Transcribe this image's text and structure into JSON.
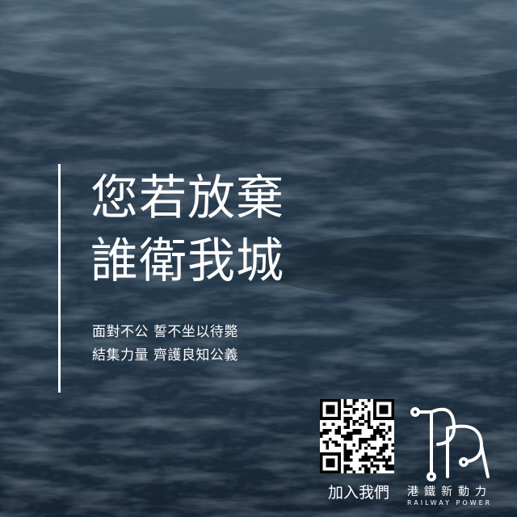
{
  "headline": {
    "line1": "您若放棄",
    "line2": "誰衛我城"
  },
  "subtitle": {
    "line1": "面對不公 誓不坐以待斃",
    "line2": "結集力量 齊護良知公義"
  },
  "cta": {
    "join_label": "加入我們"
  },
  "brand": {
    "name_zh": "港鐵新動力",
    "name_en": "RAILWAY POWER"
  },
  "colors": {
    "text": "#ffffff",
    "water_dark": "#111c27",
    "water_mid": "#2f4558",
    "water_light": "#6f8797"
  },
  "icons": {
    "qr": "qr-code-icon",
    "logo": "railway-power-logo"
  }
}
